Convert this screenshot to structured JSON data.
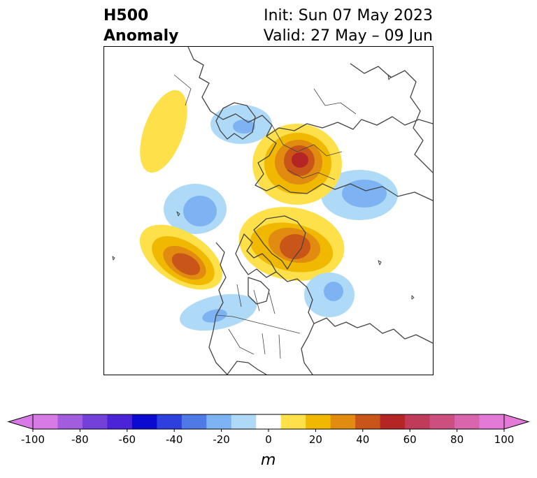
{
  "title": {
    "left_line1": "H500",
    "left_line2": "Anomaly",
    "right_line1": "Init: Sun 07 May 2023",
    "right_line2": "Valid: 27 May – 09 Jun"
  },
  "colorbar": {
    "units": "m",
    "min": -100,
    "max": 100,
    "step": 10,
    "extend": "both",
    "tick_labels": [
      "-100",
      "-80",
      "-60",
      "-40",
      "-20",
      "0",
      "20",
      "40",
      "60",
      "80",
      "100"
    ],
    "colors": [
      "#d87ae6",
      "#a25ddf",
      "#7340d9",
      "#4a24d6",
      "#0a0ad0",
      "#2d3fdc",
      "#4f7ae6",
      "#7db3f2",
      "#aedaf8",
      "#ffffff",
      "#fde04a",
      "#f1b800",
      "#e18b10",
      "#c95519",
      "#b52525",
      "#c03a5a",
      "#cc4f80",
      "#d966ad",
      "#e47ad8"
    ],
    "extend_min_color": "#d87ae6",
    "extend_max_color": "#e47ad8"
  },
  "map": {
    "projection": "north-polar-stereographic",
    "field": "500 hPa geopotential height anomaly",
    "coastline_color": "#444444",
    "anomaly_centers": [
      {
        "region": "Northeast Siberia",
        "sign": "positive",
        "max_m": 65
      },
      {
        "region": "Greenland / Canadian Arctic",
        "sign": "positive",
        "max_m": 45
      },
      {
        "region": "Northeast Pacific",
        "sign": "positive",
        "max_m": 45
      },
      {
        "region": "Northwest Canada",
        "sign": "positive",
        "max_m": 15
      },
      {
        "region": "Scandinavia",
        "sign": "negative",
        "max_m": -25
      },
      {
        "region": "Western Russia",
        "sign": "negative",
        "max_m": -35
      },
      {
        "region": "Bering Sea / Alaska",
        "sign": "negative",
        "max_m": -35
      },
      {
        "region": "North Atlantic",
        "sign": "negative",
        "max_m": -35
      },
      {
        "region": "Southwestern United States",
        "sign": "negative",
        "max_m": -25
      }
    ]
  }
}
